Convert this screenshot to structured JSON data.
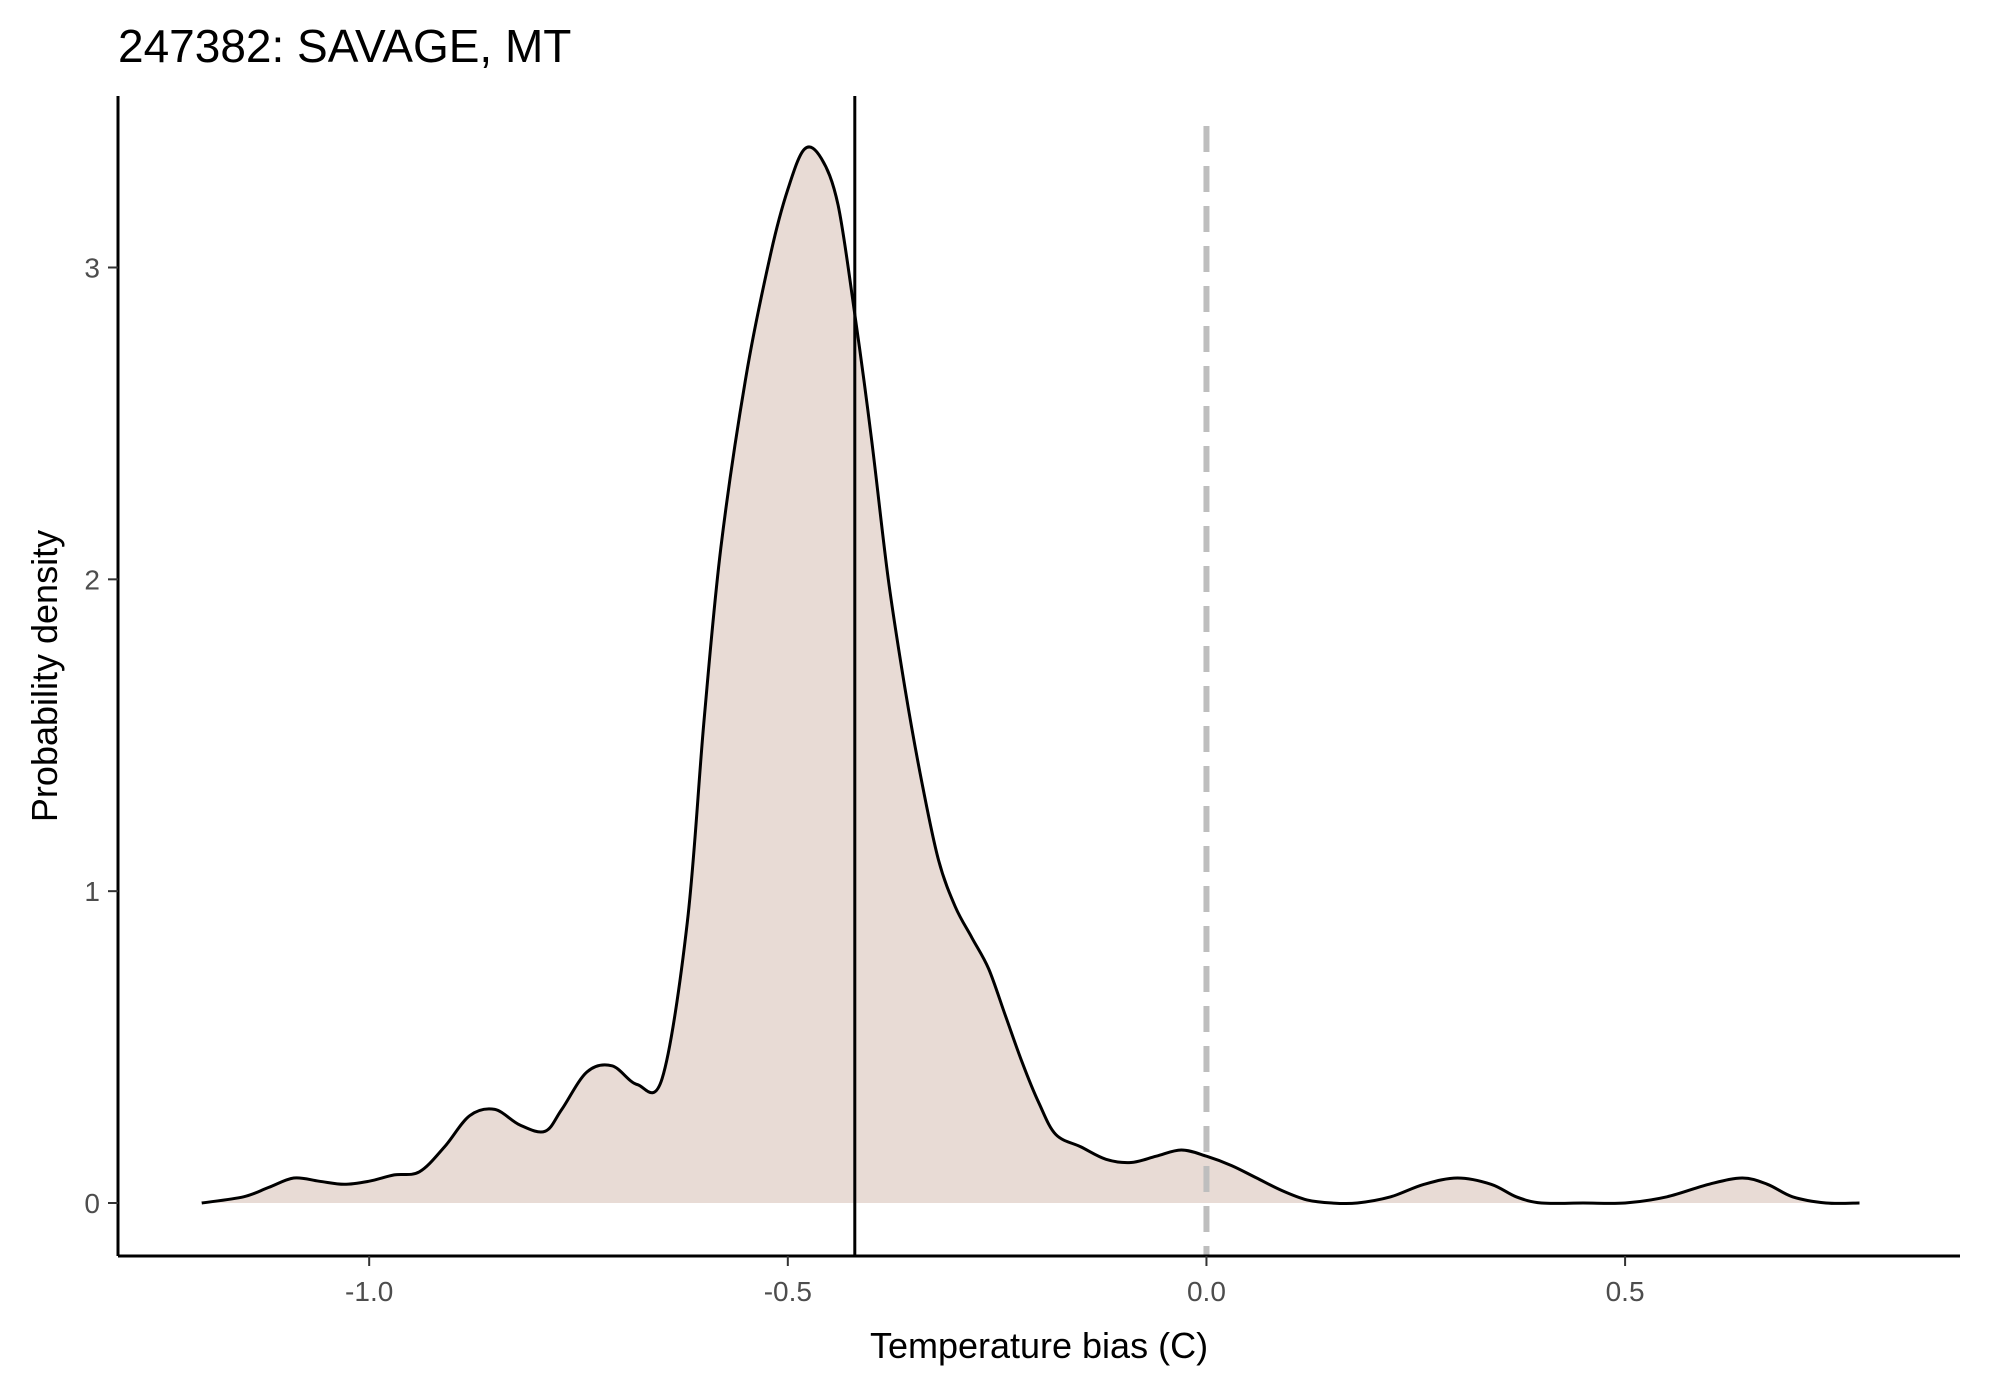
{
  "chart_data": {
    "type": "area",
    "title": "247382: SAVAGE, MT",
    "xlabel": "Temperature bias (C)",
    "ylabel": "Probability density",
    "xlim": [
      -1.3,
      0.9
    ],
    "ylim": [
      -0.17,
      3.55
    ],
    "x_ticks": [
      -1.0,
      -0.5,
      0.0,
      0.5
    ],
    "x_tick_labels": [
      "-1.0",
      "-0.5",
      "0.0",
      "0.5"
    ],
    "y_ticks": [
      0,
      1,
      2,
      3
    ],
    "y_tick_labels": [
      "0",
      "1",
      "2",
      "3"
    ],
    "grid": false,
    "legend": "none",
    "fill_color": "#e8dbd5",
    "line_color": "#000000",
    "mean_line": {
      "x": -0.42,
      "color": "#000000",
      "style": "solid"
    },
    "reference_line": {
      "x": 0.0,
      "color": "#bebebe",
      "style": "dashed"
    },
    "series": [
      {
        "x": [
          -1.2,
          -1.15,
          -1.12,
          -1.09,
          -1.06,
          -1.03,
          -1.0,
          -0.97,
          -0.94,
          -0.91,
          -0.88,
          -0.85,
          -0.82,
          -0.79,
          -0.77,
          -0.74,
          -0.71,
          -0.68,
          -0.65,
          -0.62,
          -0.6,
          -0.58,
          -0.55,
          -0.52,
          -0.5,
          -0.48,
          -0.46,
          -0.44,
          -0.42,
          -0.4,
          -0.38,
          -0.36,
          -0.34,
          -0.32,
          -0.3,
          -0.28,
          -0.26,
          -0.24,
          -0.22,
          -0.2,
          -0.18,
          -0.15,
          -0.12,
          -0.09,
          -0.06,
          -0.03,
          0.0,
          0.03,
          0.06,
          0.09,
          0.12,
          0.15,
          0.18,
          0.22,
          0.26,
          0.3,
          0.34,
          0.37,
          0.4,
          0.45,
          0.5,
          0.55,
          0.6,
          0.64,
          0.67,
          0.7,
          0.74,
          0.78
        ],
        "y": [
          0.0,
          0.02,
          0.05,
          0.08,
          0.07,
          0.06,
          0.07,
          0.09,
          0.1,
          0.18,
          0.28,
          0.3,
          0.25,
          0.23,
          0.3,
          0.42,
          0.44,
          0.38,
          0.4,
          0.9,
          1.55,
          2.1,
          2.65,
          3.05,
          3.25,
          3.38,
          3.35,
          3.2,
          2.85,
          2.45,
          2.0,
          1.65,
          1.35,
          1.1,
          0.95,
          0.85,
          0.75,
          0.6,
          0.45,
          0.32,
          0.22,
          0.18,
          0.14,
          0.13,
          0.15,
          0.17,
          0.15,
          0.12,
          0.08,
          0.04,
          0.01,
          0.0,
          0.0,
          0.02,
          0.06,
          0.08,
          0.06,
          0.02,
          0.0,
          0.0,
          0.0,
          0.02,
          0.06,
          0.08,
          0.06,
          0.02,
          0.0,
          0.0
        ]
      }
    ]
  }
}
